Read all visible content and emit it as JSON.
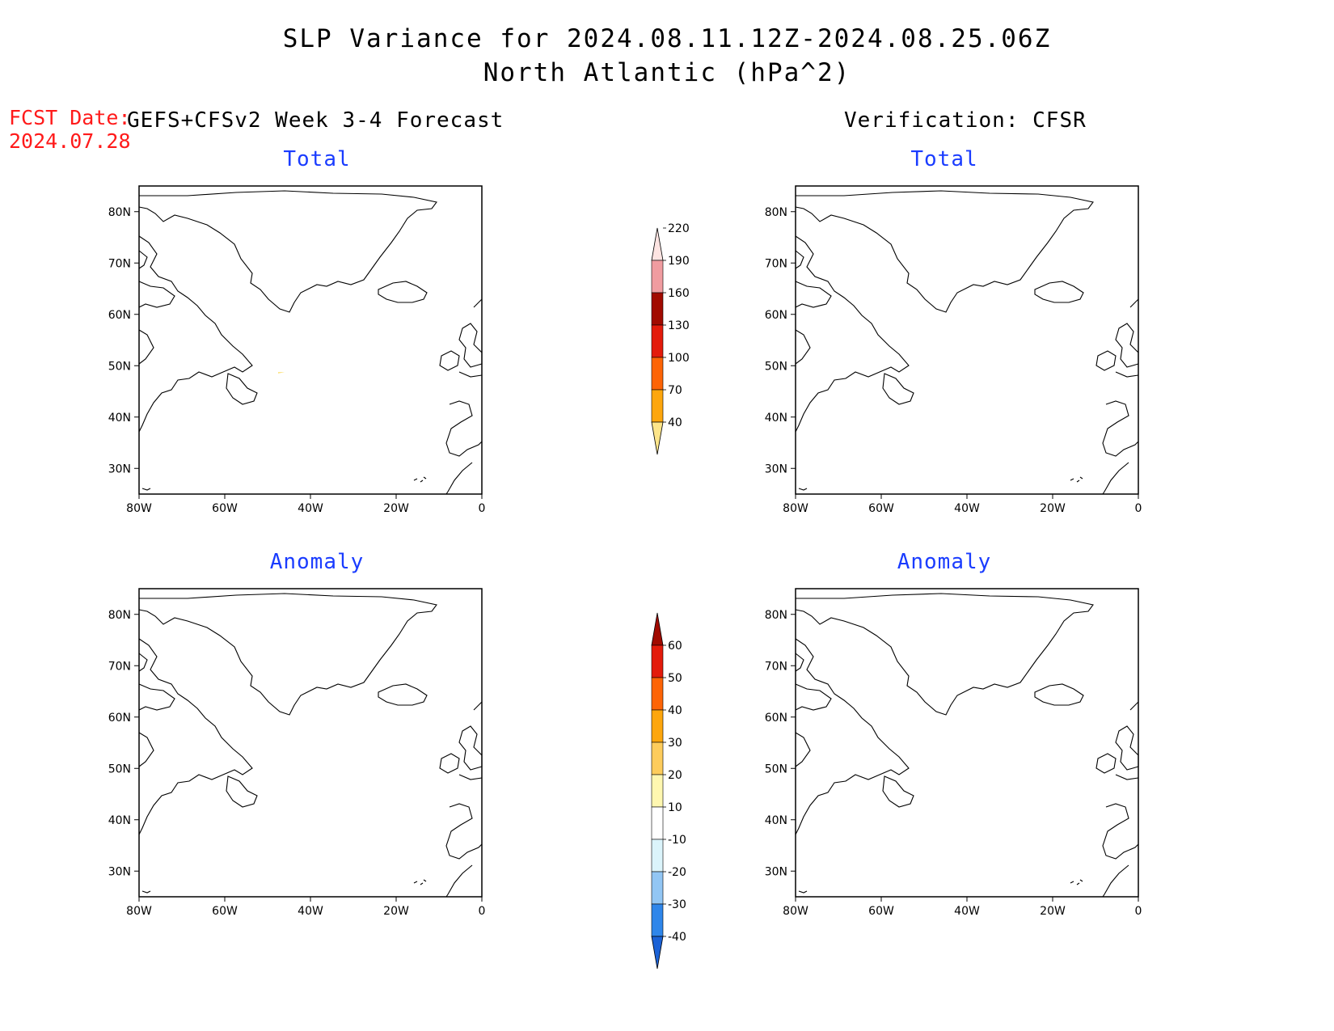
{
  "header": {
    "title_line1": "SLP Variance for 2024.08.11.12Z-2024.08.25.06Z",
    "title_line2": "North Atlantic (hPa^2)",
    "fcst_label": "FCST Date:",
    "fcst_date": "2024.07.28",
    "left_column_title": "GEFS+CFSv2 Week 3-4 Forecast",
    "right_column_title": "Verification: CFSR"
  },
  "panels": {
    "forecast_total": {
      "title": "Total"
    },
    "verif_total": {
      "title": "Total"
    },
    "forecast_anomaly": {
      "title": "Anomaly"
    },
    "verif_anomaly": {
      "title": "Anomaly"
    }
  },
  "axes": {
    "lon_labels": [
      "80W",
      "60W",
      "40W",
      "20W",
      "0"
    ],
    "lat_labels": [
      "80N",
      "70N",
      "60N",
      "50N",
      "40N",
      "30N"
    ],
    "lon_range": [
      -80,
      0
    ],
    "lat_range": [
      25,
      85
    ]
  },
  "colorbars": {
    "total": {
      "labels": [
        "40",
        "70",
        "100",
        "130",
        "160",
        "190",
        "220"
      ],
      "colors": [
        "#fde58a",
        "#fda60d",
        "#fd6406",
        "#e31b0b",
        "#a10a00",
        "#f09ca0",
        "#fde4e2"
      ]
    },
    "anomaly": {
      "labels": [
        "-40",
        "-30",
        "-20",
        "-10",
        "10",
        "20",
        "30",
        "40",
        "50",
        "60"
      ],
      "colors": [
        "#1b62d6",
        "#2f86ea",
        "#92c6f4",
        "#dbf4fb",
        "#ffffff",
        "#fff7b0",
        "#fdcc5c",
        "#fda60d",
        "#fd6406",
        "#e31b0b",
        "#a10a00"
      ]
    }
  }
}
